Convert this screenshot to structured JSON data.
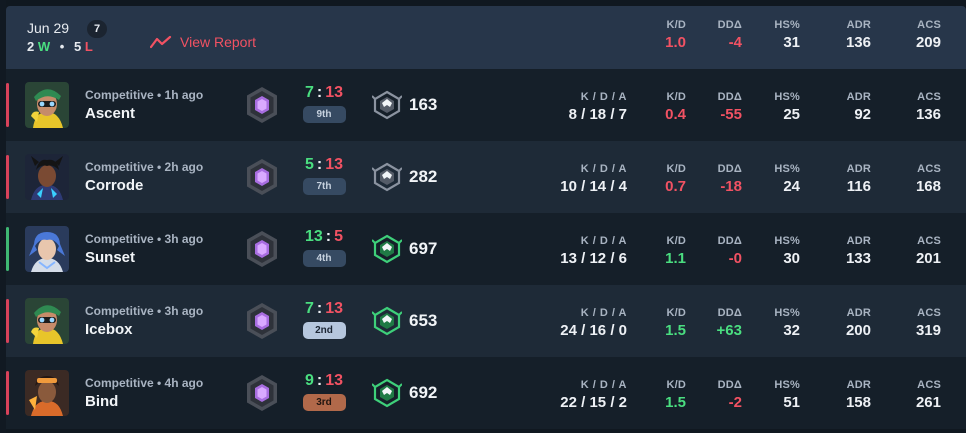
{
  "header": {
    "date": "Jun 29",
    "match_count": "7",
    "wins": "2",
    "win_letter": "W",
    "separator": "•",
    "losses": "5",
    "loss_letter": "L",
    "view_report": "View Report",
    "stats": [
      {
        "label": "K/D",
        "value": "1.0",
        "tone": "red"
      },
      {
        "label": "DDΔ",
        "value": "-4",
        "tone": "red"
      },
      {
        "label": "HS%",
        "value": "31",
        "tone": "white"
      },
      {
        "label": "ADR",
        "value": "136",
        "tone": "white"
      },
      {
        "label": "ACS",
        "value": "209",
        "tone": "white"
      }
    ]
  },
  "labels": {
    "kda": "K / D / A",
    "kd": "K/D",
    "dd": "DDΔ",
    "hs": "HS%",
    "adr": "ADR",
    "acs": "ACS",
    "colon": ":"
  },
  "matches": [
    {
      "mode": "Competitive • 1h ago",
      "map": "Ascent",
      "result": "lose",
      "agent": "killjoy",
      "team_score": "7",
      "enemy_score": "13",
      "placement": "9th",
      "placement_style": "default",
      "rr_icon": "rank-shield-grey",
      "rr": "163",
      "kda": "8 / 18 / 7",
      "kd": "0.4",
      "kd_tone": "red",
      "dd": "-55",
      "dd_tone": "red",
      "hs": "25",
      "adr": "92",
      "acs": "136"
    },
    {
      "mode": "Competitive • 2h ago",
      "map": "Corrode",
      "result": "lose",
      "agent": "neon",
      "team_score": "5",
      "enemy_score": "13",
      "placement": "7th",
      "placement_style": "default",
      "rr_icon": "rank-shield-grey",
      "rr": "282",
      "kda": "10 / 14 / 4",
      "kd": "0.7",
      "kd_tone": "red",
      "dd": "-18",
      "dd_tone": "red",
      "hs": "24",
      "adr": "116",
      "acs": "168"
    },
    {
      "mode": "Competitive • 3h ago",
      "map": "Sunset",
      "result": "win",
      "agent": "jett",
      "team_score": "13",
      "enemy_score": "5",
      "placement": "4th",
      "placement_style": "default",
      "rr_icon": "rank-shield-green",
      "rr": "697",
      "kda": "13 / 12 / 6",
      "kd": "1.1",
      "kd_tone": "green",
      "dd": "-0",
      "dd_tone": "red",
      "hs": "30",
      "adr": "133",
      "acs": "201"
    },
    {
      "mode": "Competitive • 3h ago",
      "map": "Icebox",
      "result": "lose",
      "agent": "killjoy",
      "team_score": "7",
      "enemy_score": "13",
      "placement": "2nd",
      "placement_style": "second",
      "rr_icon": "rank-shield-green",
      "rr": "653",
      "kda": "24 / 16 / 0",
      "kd": "1.5",
      "kd_tone": "green",
      "dd": "+63",
      "dd_tone": "green",
      "hs": "32",
      "adr": "200",
      "acs": "319"
    },
    {
      "mode": "Competitive • 4h ago",
      "map": "Bind",
      "result": "lose",
      "agent": "raze",
      "team_score": "9",
      "enemy_score": "13",
      "placement": "3rd",
      "placement_style": "third",
      "rr_icon": "rank-shield-green",
      "rr": "692",
      "kda": "22 / 15 / 2",
      "kd": "1.5",
      "kd_tone": "green",
      "dd": "-2",
      "dd_tone": "red",
      "hs": "51",
      "adr": "158",
      "acs": "261"
    }
  ],
  "colors": {
    "win": "#4ade80",
    "loss": "#f25263",
    "header_bg": "#27364a",
    "row_a": "#151f29",
    "row_b": "#1e2a37"
  }
}
